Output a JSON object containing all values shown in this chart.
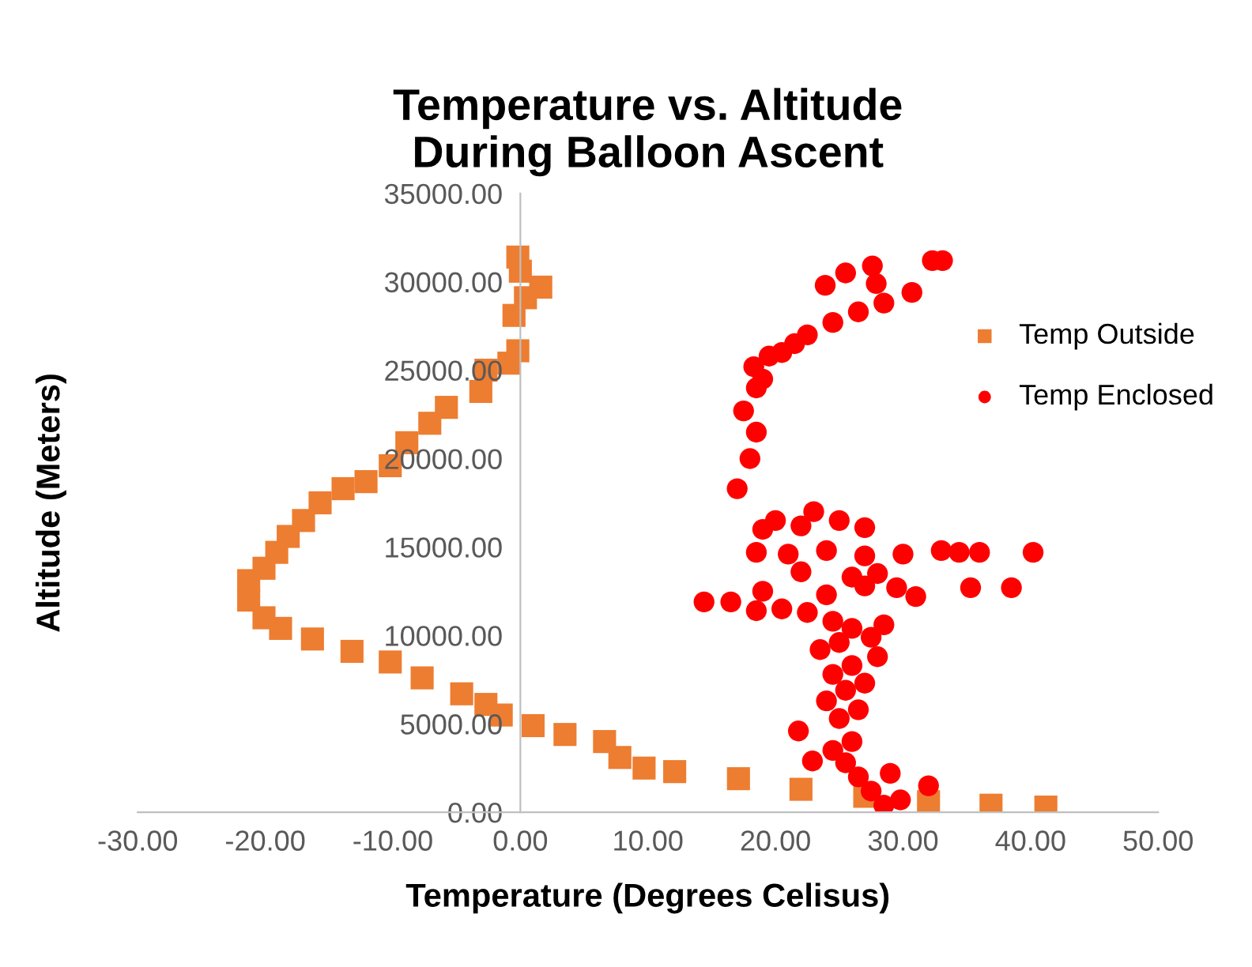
{
  "chart_data": {
    "type": "scatter",
    "title": "Temperature vs. Altitude\nDuring Balloon Ascent",
    "xlabel": "Temperature (Degrees Celisus)",
    "ylabel": "Altitude (Meters)",
    "xlim": [
      -30,
      50
    ],
    "ylim": [
      0,
      35000
    ],
    "xticks": [
      {
        "value": -30,
        "label": "-30.00"
      },
      {
        "value": -20,
        "label": "-20.00"
      },
      {
        "value": -10,
        "label": "-10.00"
      },
      {
        "value": 0,
        "label": "0.00"
      },
      {
        "value": 10,
        "label": "10.00"
      },
      {
        "value": 20,
        "label": "20.00"
      },
      {
        "value": 30,
        "label": "30.00"
      },
      {
        "value": 40,
        "label": "40.00"
      },
      {
        "value": 50,
        "label": "50.00"
      }
    ],
    "yticks": [
      {
        "value": 0,
        "label": "0.00"
      },
      {
        "value": 5000,
        "label": "5000.00"
      },
      {
        "value": 10000,
        "label": "10000.00"
      },
      {
        "value": 15000,
        "label": "15000.00"
      },
      {
        "value": 20000,
        "label": "20000.00"
      },
      {
        "value": 25000,
        "label": "25000.00"
      },
      {
        "value": 30000,
        "label": "30000.00"
      },
      {
        "value": 35000,
        "label": "35000.00"
      }
    ],
    "grid": false,
    "legend": "right",
    "series": [
      {
        "name": "Temp Outside",
        "color": "#ed7d31",
        "marker": "square",
        "x": [
          41.2,
          36.9,
          32.0,
          27.0,
          22.0,
          17.1,
          12.1,
          9.7,
          7.8,
          6.6,
          3.5,
          1.0,
          -1.5,
          -2.7,
          -4.6,
          -7.7,
          -10.2,
          -13.2,
          -16.3,
          -18.8,
          -20.1,
          -21.3,
          -21.3,
          -20.1,
          -19.1,
          -18.2,
          -17.0,
          -15.7,
          -13.9,
          -12.1,
          -10.2,
          -8.9,
          -7.1,
          -5.8,
          -3.1,
          -2.7,
          -0.9,
          -0.2,
          -0.5,
          0.4,
          1.6,
          0.0,
          -0.2
        ],
        "values": [
          300,
          400,
          600,
          900,
          1300,
          1900,
          2300,
          2500,
          3100,
          4000,
          4400,
          4900,
          5500,
          6100,
          6700,
          7600,
          8500,
          9100,
          9800,
          10400,
          11000,
          12000,
          13100,
          13800,
          14700,
          15600,
          16500,
          17500,
          18300,
          18700,
          19600,
          20900,
          22000,
          22900,
          23800,
          25000,
          25400,
          26100,
          28100,
          29100,
          29700,
          30600,
          31400
        ]
      },
      {
        "name": "Temp Enclosed",
        "color": "#ff0000",
        "marker": "circle",
        "x": [
          28.5,
          29.8,
          32.0,
          27.5,
          26.5,
          29.0,
          25.5,
          22.9,
          24.5,
          26.0,
          21.8,
          25.0,
          26.5,
          24.0,
          25.5,
          27.0,
          24.5,
          26.0,
          28.0,
          23.5,
          25.0,
          27.5,
          26.0,
          24.5,
          28.5,
          22.5,
          20.5,
          18.5,
          16.5,
          14.4,
          19.0,
          24.0,
          27.0,
          29.5,
          31.0,
          26.0,
          22.0,
          28.0,
          35.3,
          38.5,
          18.5,
          21.0,
          24.0,
          27.0,
          30.0,
          33.0,
          34.4,
          36.0,
          40.2,
          19.0,
          22.0,
          25.0,
          27.0,
          20.0,
          23.0,
          17.0,
          18.0,
          18.5,
          17.5,
          18.5,
          19.0,
          18.3,
          20.5,
          19.5,
          21.5,
          22.5,
          24.5,
          26.5,
          28.5,
          30.7,
          23.9,
          25.5,
          27.6,
          27.9,
          32.3,
          33.1
        ],
        "values": [
          400,
          700,
          1500,
          1200,
          2000,
          2200,
          2800,
          2900,
          3500,
          4000,
          4600,
          5300,
          5800,
          6300,
          6900,
          7300,
          7800,
          8300,
          8800,
          9200,
          9600,
          9900,
          10400,
          10800,
          10600,
          11300,
          11500,
          11400,
          11900,
          11900,
          12500,
          12300,
          12800,
          12700,
          12200,
          13300,
          13600,
          13500,
          12700,
          12700,
          14700,
          14600,
          14800,
          14500,
          14600,
          14800,
          14700,
          14700,
          14700,
          16000,
          16200,
          16500,
          16100,
          16500,
          17000,
          18300,
          20000,
          21500,
          22700,
          24000,
          24500,
          25200,
          26000,
          25800,
          26500,
          27000,
          27700,
          28300,
          28800,
          29400,
          29800,
          30500,
          30900,
          29900,
          31200,
          31200
        ]
      }
    ]
  }
}
